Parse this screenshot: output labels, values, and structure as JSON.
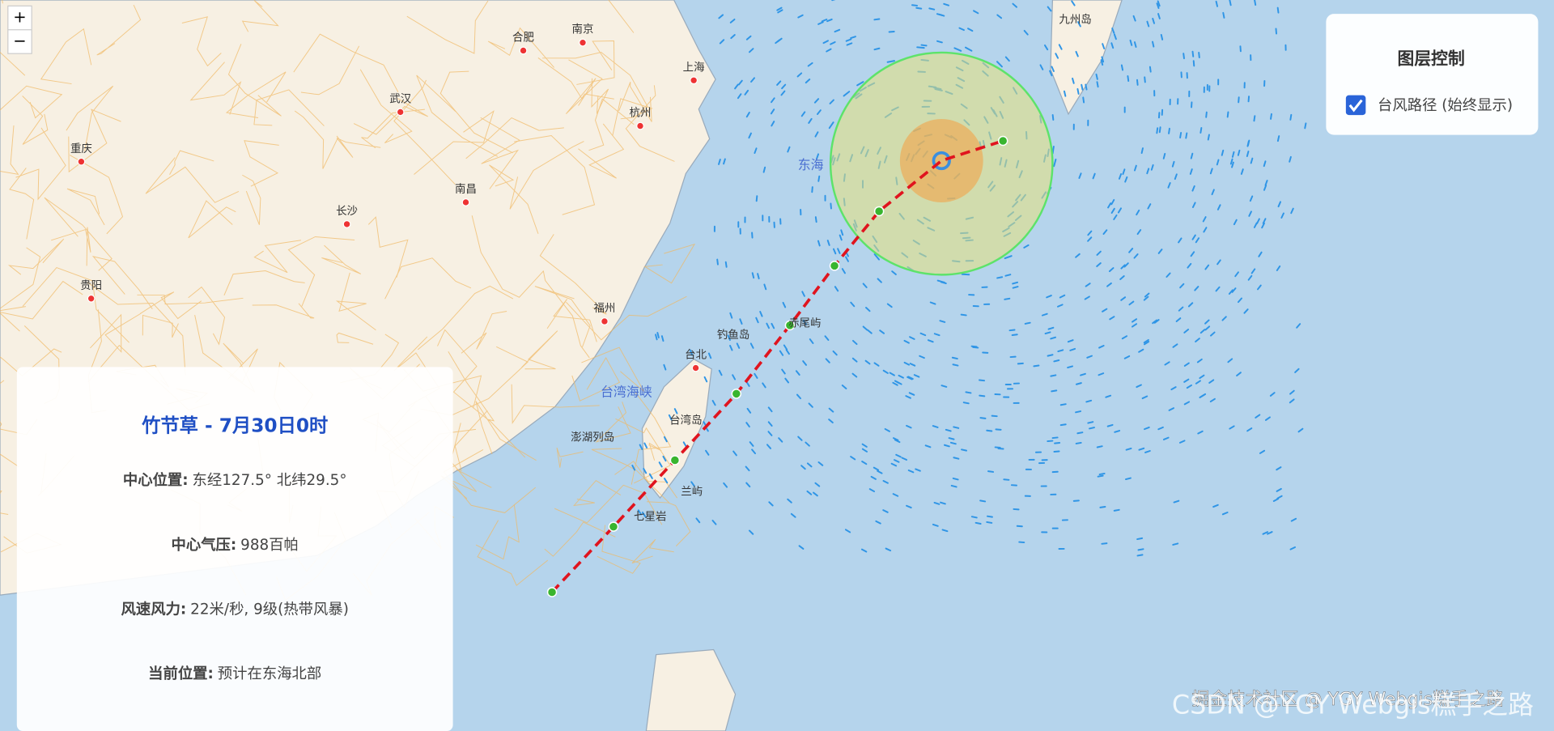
{
  "zoom_controls": {
    "zoom_in": "+",
    "zoom_out": "−"
  },
  "layer_control": {
    "title": "图层控制",
    "option": "台风路径 (始终显示)"
  },
  "info_panel": {
    "title": "竹节草 - 7月30日0时",
    "fields": [
      {
        "label": "中心位置:",
        "value": "东经127.5° 北纬29.5°"
      },
      {
        "label": "中心气压:",
        "value": "988百帕"
      },
      {
        "label": "风速风力:",
        "value": "22米/秒, 9级(热带风暴)"
      },
      {
        "label": "当前位置:",
        "value": "预计在东海北部"
      }
    ]
  },
  "map_labels": {
    "cities": [
      "合肥",
      "南京",
      "上海",
      "武汉",
      "杭州",
      "重庆",
      "南昌",
      "长沙",
      "贵阳",
      "福州",
      "台北",
      "九州岛",
      "台湾岛",
      "澎湖列岛",
      "兰屿",
      "七星岩",
      "钓鱼岛",
      "赤尾屿"
    ],
    "seas": [
      "东海",
      "台湾海峡"
    ]
  },
  "watermark": [
    "掘金技术社区 @ YGY Webgis糕手之路",
    "CSDN @YGY Webgis糕手之路"
  ]
}
